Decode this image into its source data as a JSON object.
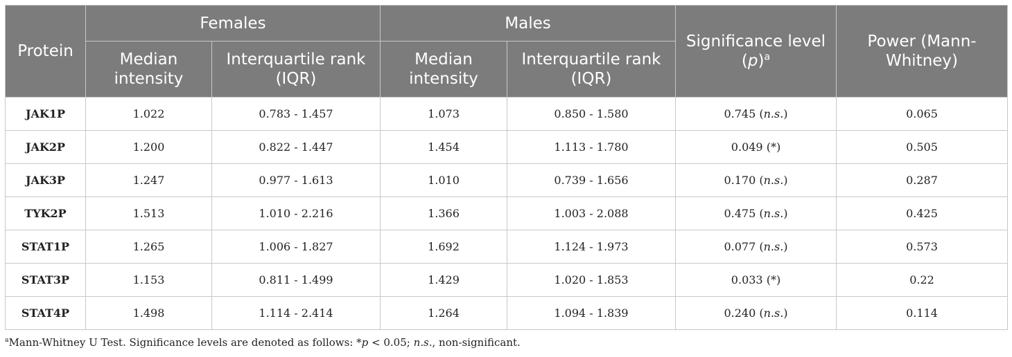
{
  "header": {
    "protein": "Protein",
    "females": "Females",
    "males": "Males",
    "median_intensity": "Median intensity",
    "iqr": "Interquartile rank (IQR)",
    "significance": "Significance level (",
    "significance_p": "p",
    "significance_close": ")",
    "significance_sup": "a",
    "power": "Power (Mann-Whitney)"
  },
  "rows": [
    {
      "protein": "JAK1P",
      "f_median": "1.022",
      "f_iqr": "0.783 - 1.457",
      "m_median": "1.073",
      "m_iqr": "0.850 - 1.580",
      "p_value": "0.745",
      "sig": "n.s.",
      "sig_italic": "true",
      "power": "0.065"
    },
    {
      "protein": "JAK2P",
      "f_median": "1.200",
      "f_iqr": "0.822 - 1.447",
      "m_median": "1.454",
      "m_iqr": "1.113 - 1.780",
      "p_value": "0.049",
      "sig": "*",
      "sig_italic": "false",
      "power": "0.505"
    },
    {
      "protein": "JAK3P",
      "f_median": "1.247",
      "f_iqr": "0.977 - 1.613",
      "m_median": "1.010",
      "m_iqr": "0.739 - 1.656",
      "p_value": "0.170",
      "sig": "n.s.",
      "sig_italic": "true",
      "power": "0.287"
    },
    {
      "protein": "TYK2P",
      "f_median": "1.513",
      "f_iqr": "1.010 - 2.216",
      "m_median": "1.366",
      "m_iqr": "1.003 - 2.088",
      "p_value": "0.475",
      "sig": "n.s.",
      "sig_italic": "true",
      "power": "0.425"
    },
    {
      "protein": "STAT1P",
      "f_median": "1.265",
      "f_iqr": "1.006 - 1.827",
      "m_median": "1.692",
      "m_iqr": "1.124 - 1.973",
      "p_value": "0.077",
      "sig": "n.s.",
      "sig_italic": "true",
      "power": "0.573"
    },
    {
      "protein": "STAT3P",
      "f_median": "1.153",
      "f_iqr": "0.811 - 1.499",
      "m_median": "1.429",
      "m_iqr": "1.020 - 1.853",
      "p_value": "0.033",
      "sig": "*",
      "sig_italic": "false",
      "power": "0.22"
    },
    {
      "protein": "STAT4P",
      "f_median": "1.498",
      "f_iqr": "1.114 - 2.414",
      "m_median": "1.264",
      "m_iqr": "1.094 - 1.839",
      "p_value": "0.240",
      "sig": "n.s.",
      "sig_italic": "true",
      "power": "0.114"
    }
  ],
  "footnote": {
    "marker": "a",
    "text1": "Mann-Whitney U Test. Significance levels are denoted as follows: *",
    "p": "p",
    "text2": " < 0.05; ",
    "ns": "n.s.",
    "text3": ", non-significant."
  },
  "colors": {
    "header_bg": "#7c7c7c",
    "header_text": "#ffffff",
    "grid": "#c8c8c8"
  }
}
